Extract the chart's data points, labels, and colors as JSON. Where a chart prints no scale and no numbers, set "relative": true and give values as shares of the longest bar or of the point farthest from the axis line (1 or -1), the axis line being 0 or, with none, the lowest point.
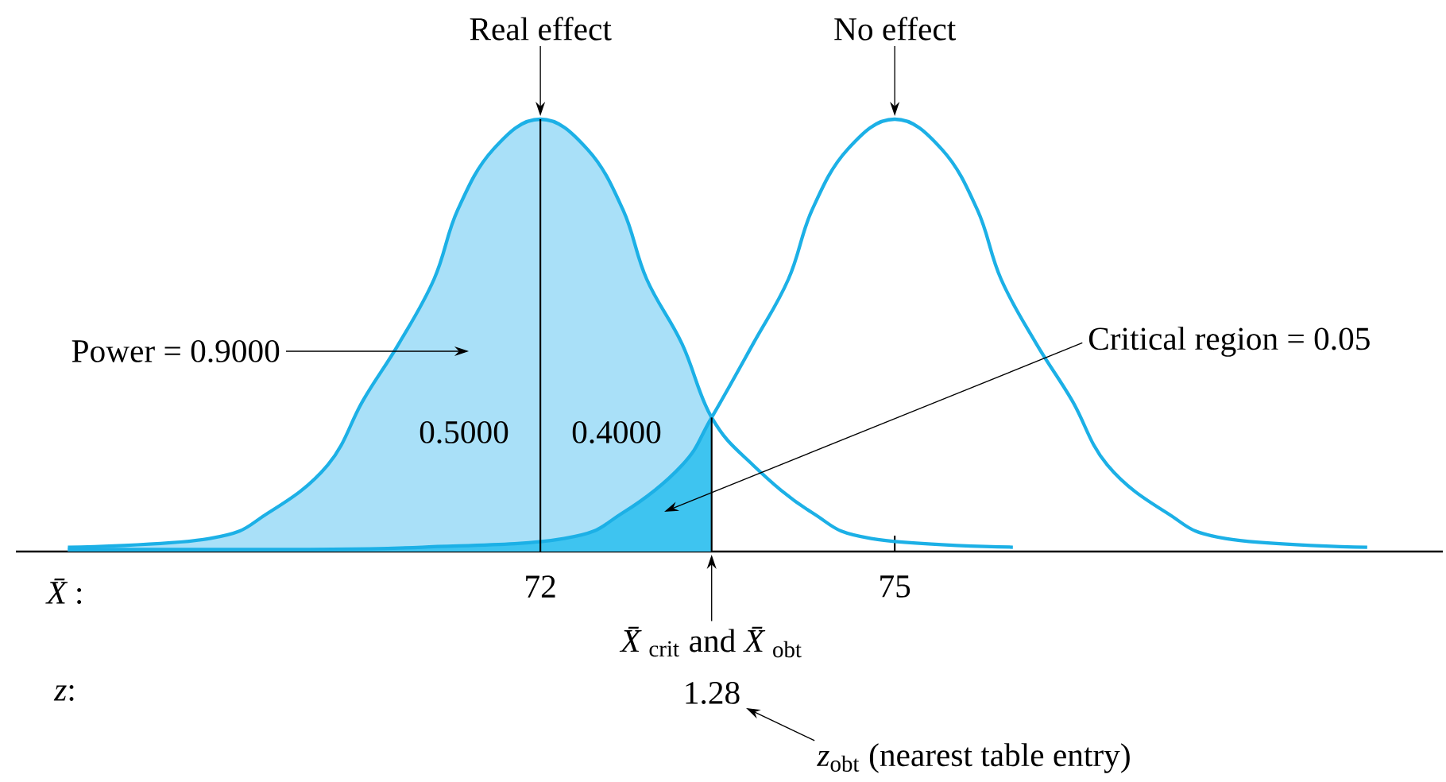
{
  "chart_data": {
    "type": "line",
    "relative": true,
    "xlabel": "*X̄*:",
    "xlim": [
      67.56,
      79.64
    ],
    "xticks": [
      72,
      75
    ],
    "series": [
      {
        "type": "area",
        "color": "#a9e0f8",
        "x": [
          68.0,
          69.2,
          69.7,
          70.2,
          70.5,
          70.8,
          71.1,
          71.3,
          71.6,
          72,
          72.4,
          72.7,
          72.9,
          73.2,
          73.45
        ],
        "values": [
          0.01,
          0.03,
          0.09,
          0.2,
          0.35,
          0.48,
          0.63,
          0.79,
          0.93,
          1,
          0.93,
          0.79,
          0.63,
          0.48,
          0.31
        ]
      },
      {
        "type": "area",
        "color": "#3ec4f0",
        "x": [
          68.0,
          70.0,
          71.0,
          72.2,
          72.7,
          73.2,
          73.45
        ],
        "values": [
          0.005,
          0.005,
          0.01,
          0.03,
          0.09,
          0.2,
          0.31
        ]
      },
      {
        "type": "line",
        "color": "#1cb0e6",
        "x": [
          68.0,
          69.2,
          69.7,
          70.2,
          70.5,
          70.8,
          71.1,
          71.3,
          71.6,
          72,
          72.4,
          72.7,
          72.9,
          73.2,
          73.45,
          73.8,
          74.3,
          74.8,
          76.0
        ],
        "values": [
          0.01,
          0.03,
          0.09,
          0.2,
          0.35,
          0.48,
          0.63,
          0.79,
          0.93,
          1,
          0.93,
          0.79,
          0.63,
          0.48,
          0.31,
          0.2,
          0.09,
          0.03,
          0.01
        ]
      },
      {
        "type": "line",
        "color": "#1cb0e6",
        "x": [
          68.0,
          70.0,
          71.0,
          72.2,
          72.7,
          73.2,
          73.45,
          73.8,
          74.1,
          74.3,
          74.6,
          75,
          75.4,
          75.7,
          75.9,
          76.2,
          76.5,
          76.8,
          77.3,
          77.8,
          79.0
        ],
        "values": [
          0.005,
          0.005,
          0.01,
          0.03,
          0.09,
          0.2,
          0.31,
          0.48,
          0.63,
          0.79,
          0.93,
          1,
          0.93,
          0.79,
          0.63,
          0.48,
          0.35,
          0.2,
          0.09,
          0.03,
          0.01
        ]
      }
    ],
    "ref_lines": [
      {
        "axis": "x",
        "value": 72,
        "color": "#000000"
      },
      {
        "axis": "x",
        "value": 73.45,
        "color": "#000000"
      }
    ],
    "annotations": [
      {
        "text": "Real effect",
        "x": 72,
        "y": 1
      },
      {
        "text": "No effect",
        "x": 75,
        "y": 1
      },
      "Power = 0.9000",
      "Critical region = 0.05",
      "0.5000",
      "0.4000",
      {
        "text": "*X̄*$_{crit}$ and *X̄*$_{obt}$",
        "x": 73.45,
        "y": 0
      },
      "1.28",
      "*z*$_{obt}$ (nearest table entry)",
      "*z*:"
    ]
  }
}
